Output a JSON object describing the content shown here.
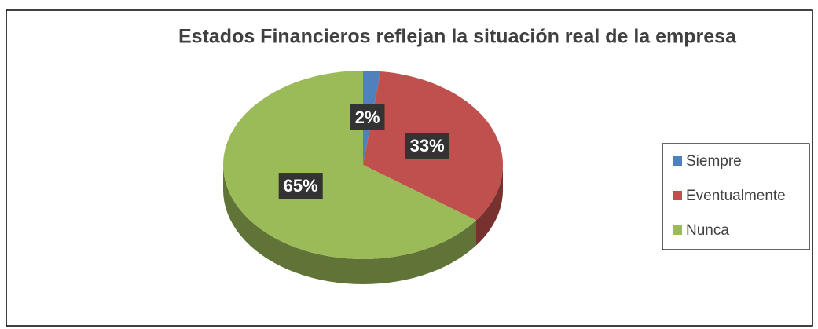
{
  "chart_data": {
    "type": "pie",
    "title": "Estados Financieros reflejan la situación real de la empresa",
    "categories": [
      "Siempre",
      "Eventualmente",
      "Nunca"
    ],
    "values": [
      2,
      33,
      65
    ],
    "value_labels": [
      "2%",
      "33%",
      "65%"
    ],
    "colors": [
      "#4f81bd",
      "#c0504d",
      "#9bbb59"
    ],
    "legend": "right"
  }
}
